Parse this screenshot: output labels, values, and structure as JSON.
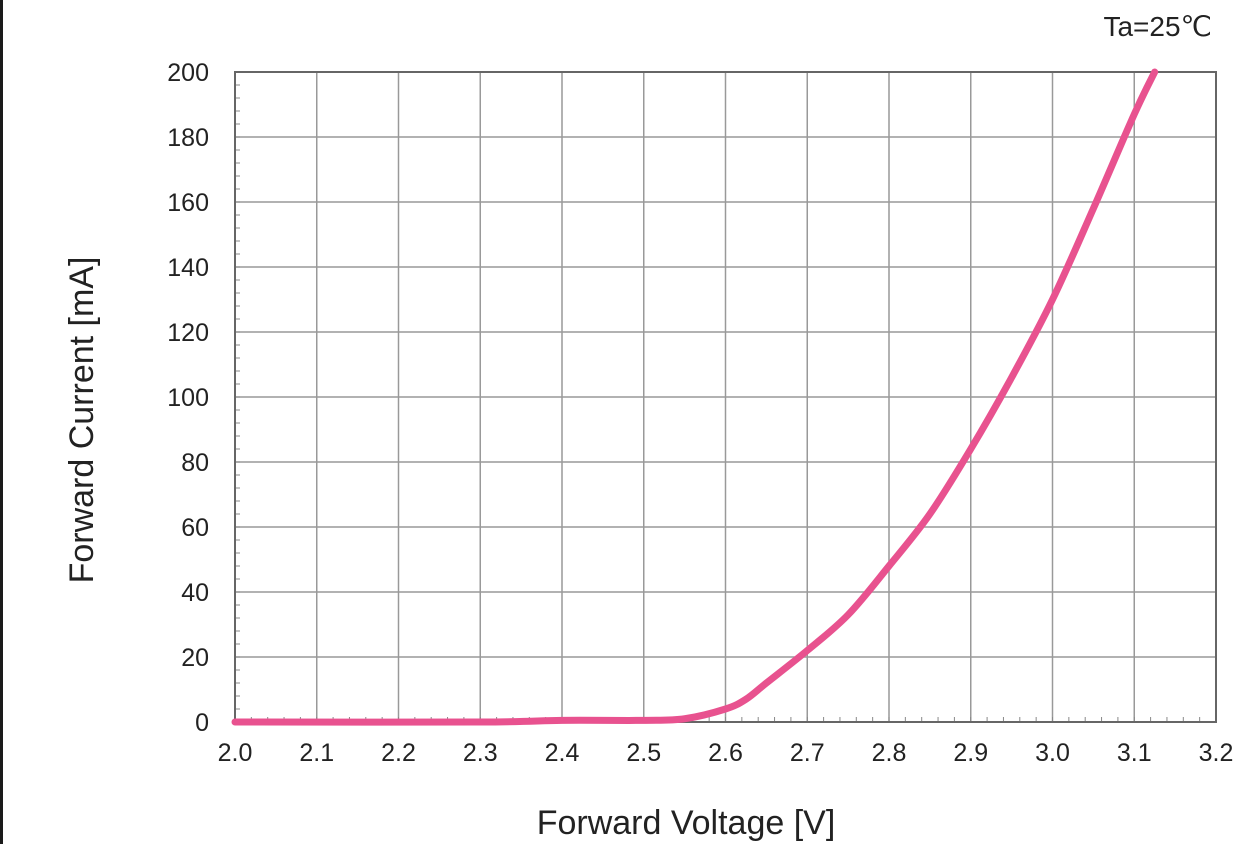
{
  "chart_data": {
    "type": "line",
    "title": "",
    "annotation": "Ta=25℃",
    "xlabel": "Forward Voltage [V]",
    "ylabel": "Forward Current [mA]",
    "xlim": [
      2.0,
      3.2
    ],
    "ylim": [
      0,
      200
    ],
    "grid": true,
    "x_ticks": [
      "2.0",
      "2.1",
      "2.2",
      "2.3",
      "2.4",
      "2.5",
      "2.6",
      "2.7",
      "2.8",
      "2.9",
      "3.0",
      "3.1",
      "3.2"
    ],
    "y_ticks": [
      "0",
      "20",
      "40",
      "60",
      "80",
      "100",
      "120",
      "140",
      "160",
      "180",
      "200"
    ],
    "series": [
      {
        "color": "#e8528f",
        "x": [
          2.0,
          2.3,
          2.4,
          2.5,
          2.55,
          2.6,
          2.625,
          2.65,
          2.7,
          2.75,
          2.8,
          2.85,
          2.9,
          2.95,
          3.0,
          3.05,
          3.1,
          3.125
        ],
        "y": [
          0,
          0,
          0.5,
          0.5,
          1,
          4,
          7,
          12,
          22,
          33,
          48,
          64,
          84,
          106,
          130,
          158,
          187,
          200
        ]
      }
    ]
  }
}
